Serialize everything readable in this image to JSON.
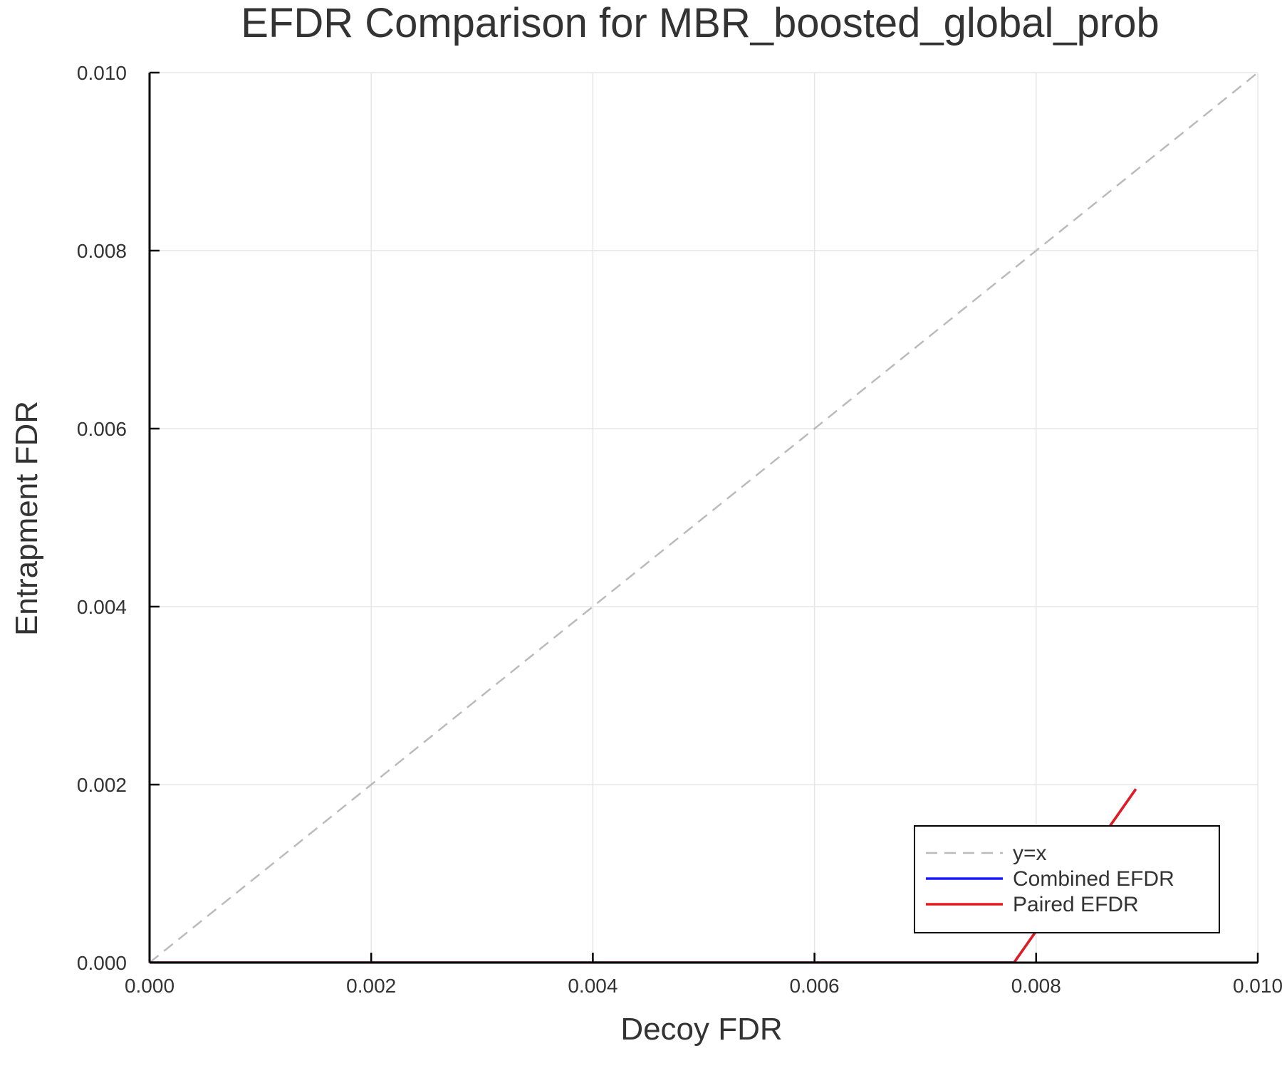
{
  "chart_data": {
    "type": "line",
    "title": "EFDR Comparison for MBR_boosted_global_prob",
    "xlabel": "Decoy FDR",
    "ylabel": "Entrapment FDR",
    "xlim": [
      0.0,
      0.01
    ],
    "ylim": [
      0.0,
      0.01
    ],
    "x_ticks": [
      "0.000",
      "0.002",
      "0.004",
      "0.006",
      "0.008",
      "0.010"
    ],
    "y_ticks": [
      "0.000",
      "0.002",
      "0.004",
      "0.006",
      "0.008",
      "0.010"
    ],
    "grid": true,
    "legend_position": "bottom-right",
    "series": [
      {
        "name": "y=x",
        "color": "#bbbbbb",
        "dash": true,
        "points": [
          [
            0.0,
            0.0
          ],
          [
            0.01,
            0.01
          ]
        ]
      },
      {
        "name": "Combined EFDR",
        "color": "#1a1aff",
        "dash": false,
        "points": [
          [
            0.0,
            0.0
          ],
          [
            0.0078,
            0.0
          ],
          [
            0.0089,
            0.00195
          ]
        ]
      },
      {
        "name": "Paired EFDR",
        "color": "#e41a1c",
        "dash": false,
        "points": [
          [
            0.0,
            0.0
          ],
          [
            0.0078,
            0.0
          ],
          [
            0.0089,
            0.00195
          ]
        ]
      }
    ]
  }
}
